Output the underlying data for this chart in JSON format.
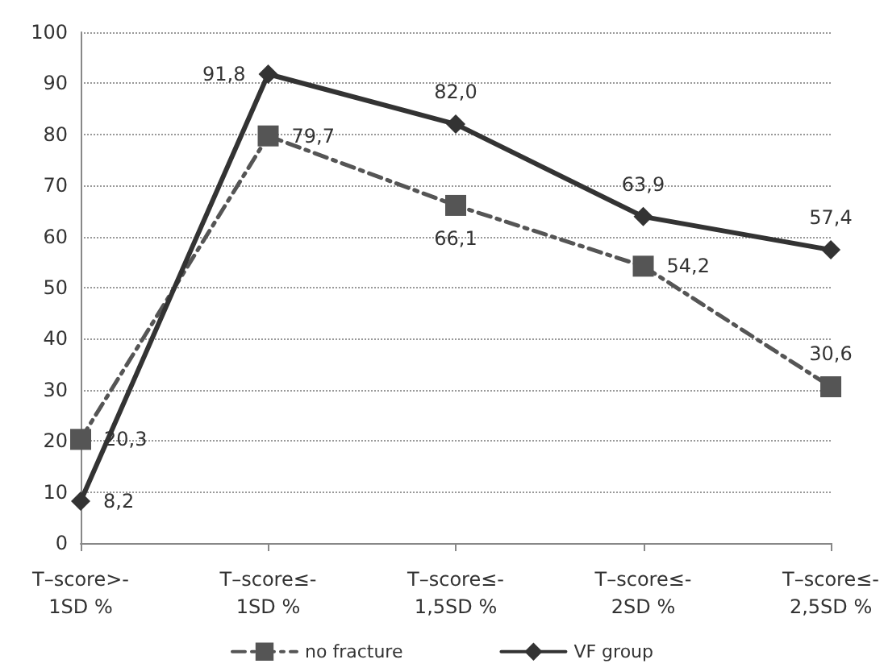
{
  "chart_data": {
    "type": "line",
    "categories": [
      "T–score>-\n1SD %",
      "T–score≤-\n1SD %",
      "T–score≤-\n1,5SD %",
      "T–score≤-\n2SD %",
      "T–score≤-\n2,5SD %"
    ],
    "series": [
      {
        "name": "no fracture",
        "color": "#555555",
        "values": [
          20.3,
          79.7,
          66.1,
          54.2,
          30.6
        ],
        "value_labels": [
          "20,3",
          "79,7",
          "66,1",
          "54,2",
          "30,6"
        ],
        "marker": "square",
        "line_style": "dashed"
      },
      {
        "name": "VF group",
        "color": "#333333",
        "values": [
          8.2,
          91.8,
          82.0,
          63.9,
          57.4
        ],
        "value_labels": [
          "8,2",
          "91,8",
          "82,0",
          "63,9",
          "57,4"
        ],
        "marker": "diamond",
        "line_style": "solid"
      }
    ],
    "ylim": [
      0,
      100
    ],
    "yticks": [
      0,
      10,
      20,
      30,
      40,
      50,
      60,
      70,
      80,
      90,
      100
    ],
    "grid": "y",
    "legend": "bottom"
  }
}
